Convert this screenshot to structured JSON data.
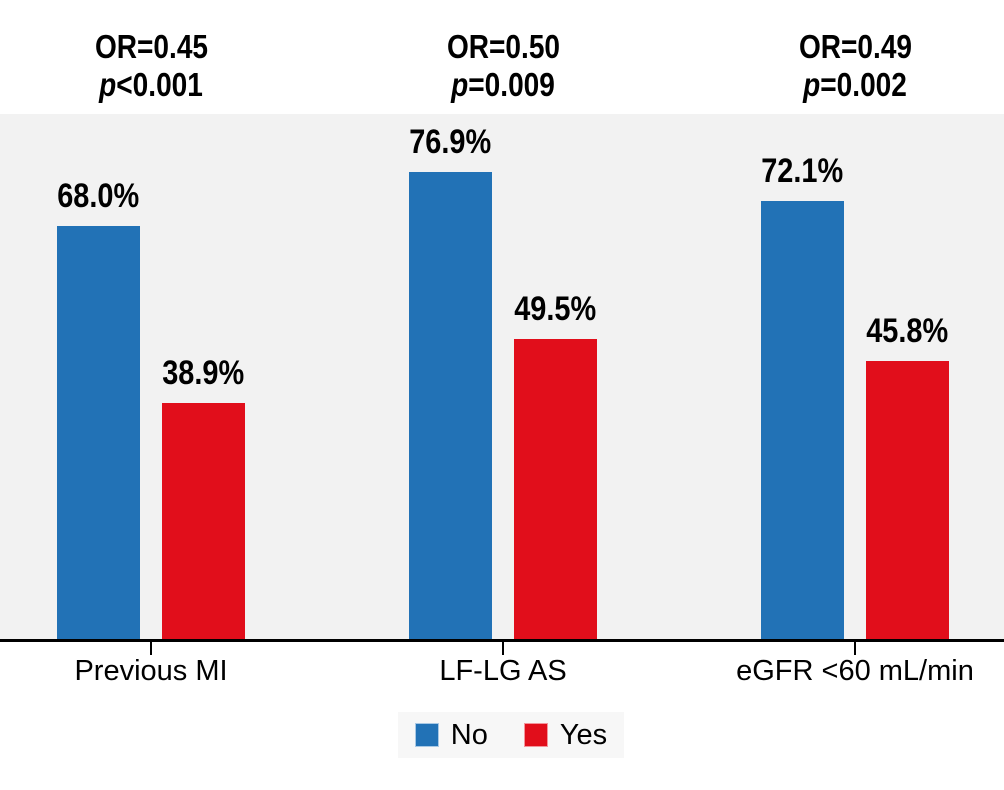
{
  "figure": {
    "background": "#ffffff",
    "plot_background": "#f2f2f2",
    "axis_color": "#000000",
    "legend_background": "#f7f7f7"
  },
  "chart_data": {
    "type": "bar",
    "title": "",
    "xlabel": "",
    "ylabel": "",
    "categories": [
      "Previous MI",
      "LF-LG AS",
      "eGFR <60 mL/min"
    ],
    "series": [
      {
        "name": "No",
        "color": "#2272b6",
        "values": [
          68.0,
          76.9,
          72.1
        ],
        "labels": [
          "68.0%",
          "76.9%",
          "72.1%"
        ]
      },
      {
        "name": "Yes",
        "color": "#e10e1b",
        "values": [
          38.9,
          49.5,
          45.8
        ],
        "labels": [
          "38.9%",
          "49.5%",
          "45.8%"
        ]
      }
    ],
    "annotations": [
      {
        "or": "OR=0.45",
        "p": "p<0.001"
      },
      {
        "or": "OR=0.50",
        "p": "p=0.009"
      },
      {
        "or": "OR=0.49",
        "p": "p=0.002"
      }
    ],
    "ylim": [
      0,
      87
    ],
    "grid": false,
    "legend": {
      "position": "bottom",
      "entries": [
        "No",
        "Yes"
      ]
    }
  }
}
